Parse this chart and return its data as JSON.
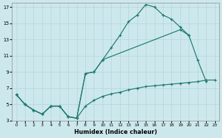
{
  "xlabel": "Humidex (Indice chaleur)",
  "xlim": [
    -0.5,
    23.5
  ],
  "ylim": [
    3,
    17.5
  ],
  "xticks": [
    0,
    1,
    2,
    3,
    4,
    5,
    6,
    7,
    8,
    9,
    10,
    11,
    12,
    13,
    14,
    15,
    16,
    17,
    18,
    19,
    20,
    21,
    22,
    23
  ],
  "yticks": [
    3,
    5,
    7,
    9,
    11,
    13,
    15,
    17
  ],
  "bg_color": "#cde8ec",
  "grid_color": "#b0d4da",
  "line_color": "#1e7a70",
  "series": [
    {
      "x": [
        0,
        1,
        2,
        3,
        4,
        5,
        6,
        7,
        8,
        9,
        10,
        11,
        12,
        13,
        14,
        15,
        16,
        17,
        18,
        19,
        20
      ],
      "y": [
        6.2,
        5.0,
        4.3,
        3.8,
        4.8,
        4.8,
        3.5,
        3.3,
        8.8,
        9.0,
        10.5,
        12.0,
        13.5,
        15.2,
        16.0,
        17.3,
        17.0,
        16.0,
        15.5,
        14.5,
        13.5
      ]
    },
    {
      "x": [
        0,
        1,
        2,
        3,
        4,
        5,
        6,
        7,
        8,
        9,
        10,
        19,
        20,
        21,
        22
      ],
      "y": [
        6.2,
        5.0,
        4.3,
        3.8,
        4.8,
        4.8,
        3.5,
        3.3,
        8.8,
        9.0,
        10.5,
        14.2,
        13.5,
        10.5,
        7.8
      ]
    },
    {
      "x": [
        0,
        1,
        2,
        3,
        4,
        5,
        6,
        7,
        8,
        9,
        10,
        11,
        12,
        13,
        14,
        15,
        16,
        17,
        18,
        19,
        20,
        21,
        22,
        23
      ],
      "y": [
        6.2,
        5.0,
        4.3,
        3.8,
        4.8,
        4.8,
        3.5,
        3.3,
        4.8,
        5.5,
        6.0,
        6.3,
        6.5,
        6.8,
        7.0,
        7.2,
        7.3,
        7.4,
        7.5,
        7.6,
        7.7,
        7.8,
        8.0,
        8.0
      ]
    }
  ]
}
